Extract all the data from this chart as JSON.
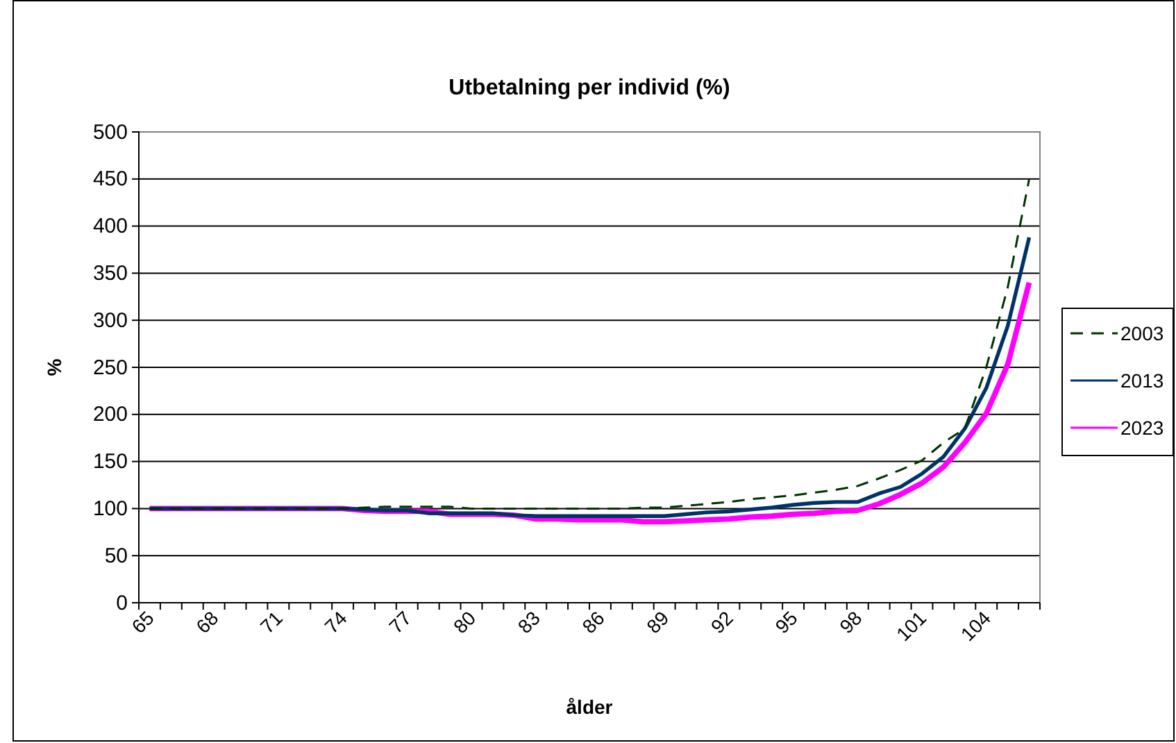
{
  "chart_data": {
    "type": "line",
    "title": "Utbetalning per individ (%)",
    "xlabel": "ålder",
    "ylabel": "%",
    "categories": [
      "65",
      null,
      null,
      "68",
      null,
      null,
      "71",
      null,
      null,
      "74",
      null,
      null,
      "77",
      null,
      null,
      "80",
      null,
      null,
      "83",
      null,
      null,
      "86",
      null,
      null,
      "89",
      null,
      null,
      "92",
      null,
      null,
      "95",
      null,
      null,
      "98",
      null,
      null,
      "101",
      null,
      null,
      "104",
      null,
      null
    ],
    "series": [
      {
        "name": "2003",
        "color": "#003300",
        "line_style": "dashed",
        "values": [
          100,
          100,
          100,
          100,
          100,
          100,
          100,
          100,
          100,
          100,
          101,
          102,
          102,
          102,
          102,
          100,
          100,
          100,
          100,
          100,
          100,
          100,
          100,
          101,
          101,
          103,
          105,
          107,
          110,
          112,
          114,
          117,
          120,
          124,
          132,
          141,
          151,
          170,
          185,
          250,
          335,
          450
        ]
      },
      {
        "name": "2013",
        "color": "#003366",
        "line_style": "solid",
        "values": [
          100,
          100,
          100,
          100,
          100,
          100,
          100,
          100,
          100,
          100,
          99,
          98,
          98,
          95,
          95,
          95,
          95,
          93,
          92,
          92,
          92,
          92,
          92,
          92,
          92,
          94,
          96,
          97,
          99,
          101,
          104,
          106,
          107,
          107,
          116,
          123,
          137,
          155,
          185,
          228,
          294,
          388
        ]
      },
      {
        "name": "2023",
        "color": "#ff00ff",
        "line_style": "solid",
        "values": [
          100,
          100,
          100,
          100,
          100,
          100,
          100,
          100,
          100,
          100,
          98,
          97,
          97,
          97,
          94,
          94,
          94,
          93,
          89,
          89,
          88,
          88,
          88,
          86,
          86,
          87,
          88,
          89,
          91,
          92,
          94,
          95,
          97,
          98,
          105,
          115,
          127,
          144,
          170,
          201,
          253,
          340
        ]
      }
    ],
    "ylim": [
      0,
      500
    ],
    "yticks": [
      0,
      50,
      100,
      150,
      200,
      250,
      300,
      350,
      400,
      450,
      500
    ],
    "grid": "y",
    "legend": "right"
  }
}
